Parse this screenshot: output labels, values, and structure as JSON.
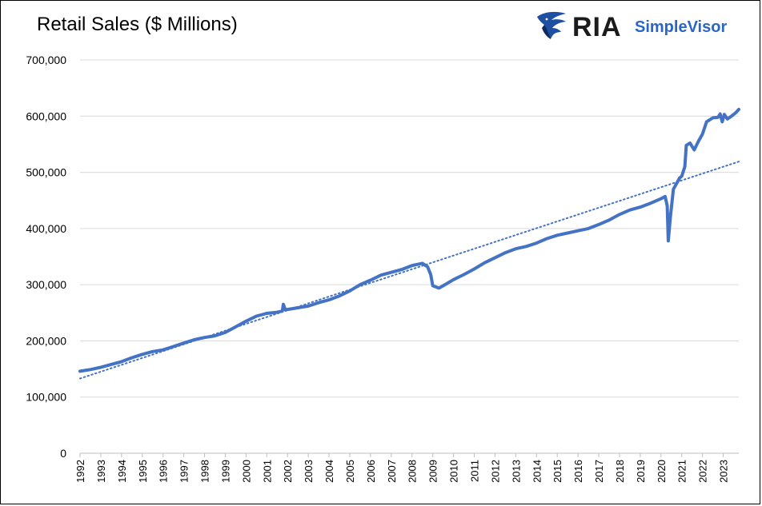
{
  "chart_data": {
    "type": "line",
    "title": "Retail Sales ($ Millions)",
    "xlabel": "",
    "ylabel": "",
    "ylim": [
      0,
      700000
    ],
    "xlim": [
      1992.0,
      2023.75
    ],
    "grid": "horizontal",
    "y_ticks": [
      0,
      100000,
      200000,
      300000,
      400000,
      500000,
      600000,
      700000
    ],
    "y_tick_labels": [
      "0",
      "100,000",
      "200,000",
      "300,000",
      "400,000",
      "500,000",
      "600,000",
      "700,000"
    ],
    "x_tick_labels": [
      "1992",
      "1993",
      "1994",
      "1995",
      "1996",
      "1997",
      "1998",
      "1999",
      "2000",
      "2001",
      "2002",
      "2003",
      "2004",
      "2005",
      "2006",
      "2007",
      "2008",
      "2009",
      "2010",
      "2011",
      "2012",
      "2013",
      "2014",
      "2015",
      "2016",
      "2017",
      "2018",
      "2019",
      "2020",
      "2021",
      "2022",
      "2023"
    ],
    "series": [
      {
        "style": "solid",
        "color": "#4472c4",
        "points": [
          [
            1992.0,
            146000
          ],
          [
            1992.5,
            149000
          ],
          [
            1993.0,
            153000
          ],
          [
            1993.5,
            158000
          ],
          [
            1994.0,
            163000
          ],
          [
            1994.5,
            170000
          ],
          [
            1995.0,
            176000
          ],
          [
            1995.5,
            181000
          ],
          [
            1996.0,
            184000
          ],
          [
            1996.5,
            190000
          ],
          [
            1997.0,
            196000
          ],
          [
            1997.5,
            202000
          ],
          [
            1998.0,
            206000
          ],
          [
            1998.5,
            209000
          ],
          [
            1999.0,
            215000
          ],
          [
            1999.5,
            225000
          ],
          [
            2000.0,
            235000
          ],
          [
            2000.5,
            244000
          ],
          [
            2001.0,
            249000
          ],
          [
            2001.5,
            251000
          ],
          [
            2001.75,
            253000
          ],
          [
            2001.8,
            265000
          ],
          [
            2001.9,
            255000
          ],
          [
            2002.0,
            256000
          ],
          [
            2002.5,
            259000
          ],
          [
            2003.0,
            262000
          ],
          [
            2003.5,
            268000
          ],
          [
            2004.0,
            273000
          ],
          [
            2004.5,
            280000
          ],
          [
            2005.0,
            289000
          ],
          [
            2005.5,
            300000
          ],
          [
            2006.0,
            308000
          ],
          [
            2006.5,
            317000
          ],
          [
            2007.0,
            322000
          ],
          [
            2007.5,
            327000
          ],
          [
            2008.0,
            334000
          ],
          [
            2008.5,
            338000
          ],
          [
            2008.75,
            332000
          ],
          [
            2008.9,
            318000
          ],
          [
            2009.0,
            298000
          ],
          [
            2009.3,
            294000
          ],
          [
            2009.5,
            298000
          ],
          [
            2010.0,
            309000
          ],
          [
            2010.5,
            318000
          ],
          [
            2011.0,
            328000
          ],
          [
            2011.5,
            339000
          ],
          [
            2012.0,
            348000
          ],
          [
            2012.5,
            357000
          ],
          [
            2013.0,
            364000
          ],
          [
            2013.5,
            368000
          ],
          [
            2014.0,
            374000
          ],
          [
            2014.5,
            382000
          ],
          [
            2015.0,
            388000
          ],
          [
            2015.5,
            392000
          ],
          [
            2016.0,
            396000
          ],
          [
            2016.5,
            400000
          ],
          [
            2017.0,
            407000
          ],
          [
            2017.5,
            415000
          ],
          [
            2018.0,
            425000
          ],
          [
            2018.5,
            433000
          ],
          [
            2019.0,
            438000
          ],
          [
            2019.5,
            445000
          ],
          [
            2020.0,
            453000
          ],
          [
            2020.2,
            457000
          ],
          [
            2020.3,
            440000
          ],
          [
            2020.35,
            378000
          ],
          [
            2020.45,
            420000
          ],
          [
            2020.6,
            470000
          ],
          [
            2020.9,
            490000
          ],
          [
            2021.0,
            493000
          ],
          [
            2021.15,
            510000
          ],
          [
            2021.22,
            548000
          ],
          [
            2021.4,
            552000
          ],
          [
            2021.6,
            540000
          ],
          [
            2021.8,
            555000
          ],
          [
            2022.0,
            568000
          ],
          [
            2022.2,
            590000
          ],
          [
            2022.5,
            597000
          ],
          [
            2022.75,
            598000
          ],
          [
            2022.85,
            604000
          ],
          [
            2022.95,
            590000
          ],
          [
            2023.05,
            603000
          ],
          [
            2023.2,
            595000
          ],
          [
            2023.4,
            600000
          ],
          [
            2023.6,
            606000
          ],
          [
            2023.75,
            612000
          ]
        ]
      },
      {
        "style": "dotted",
        "color": "#4472c4",
        "points": [
          [
            1992.0,
            133000
          ],
          [
            2023.75,
            519000
          ]
        ]
      }
    ]
  }
}
